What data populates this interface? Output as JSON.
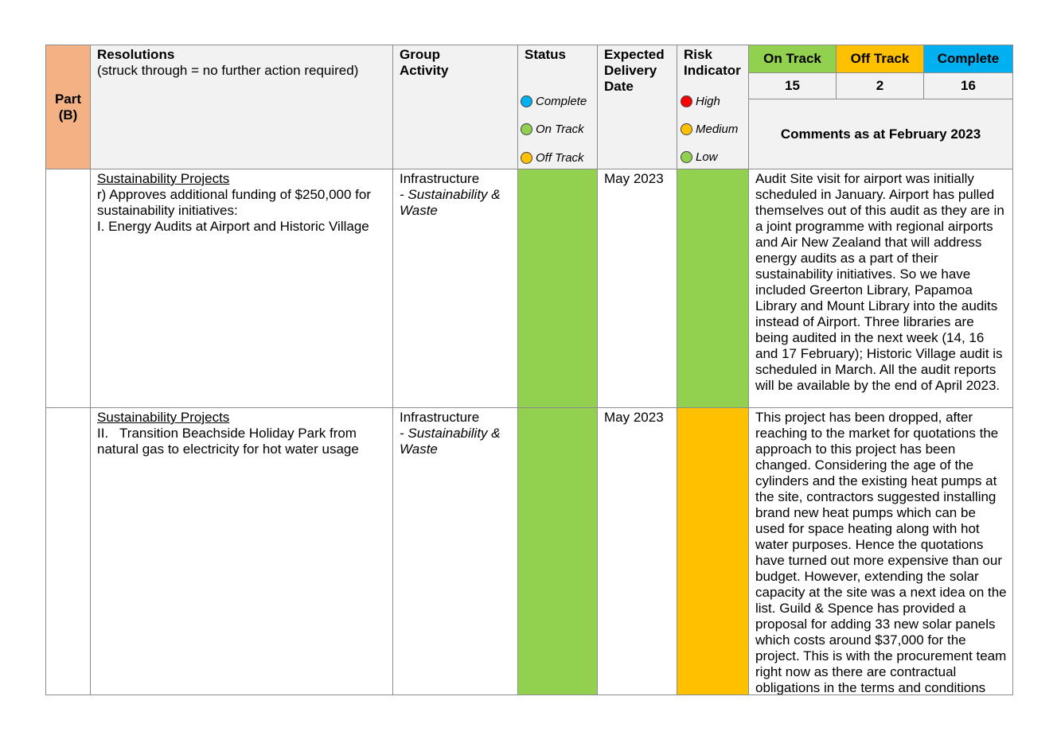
{
  "header": {
    "part": "Part\n(B)",
    "resolutions_title": "Resolutions",
    "resolutions_sub": "(struck through = no further action required)",
    "group_activity": "Group\nActivity",
    "status": "Status",
    "expected_delivery": "Expected\nDelivery\nDate",
    "risk_indicator": "Risk\nIndicator",
    "status_legend": [
      "Complete",
      "On Track",
      "Off Track"
    ],
    "risk_legend": [
      "High",
      "Medium",
      "Low"
    ],
    "summary": [
      {
        "label": "On Track",
        "count": "15",
        "color": "#92d050"
      },
      {
        "label": "Off Track",
        "count": "2",
        "color": "#ffc000"
      },
      {
        "label": "Complete",
        "count": "16",
        "color": "#00b0f0"
      }
    ],
    "comments_title": "Comments as at February 2023"
  },
  "colors": {
    "part_bg": "#f4b183",
    "header_bg": "#f2f2f2",
    "green": "#92d050",
    "amber": "#ffc000",
    "blue": "#00b0f0",
    "red": "#ff0000"
  },
  "rows": [
    {
      "project": "Sustainability Projects",
      "resolution": "r) Approves additional funding of $250,000 for sustainability initiatives:\nI. Energy Audits at Airport and Historic Village",
      "group": "Infrastructure",
      "activity": "- Sustainability & Waste",
      "status": "On Track",
      "delivery": "May 2023",
      "risk": "Low",
      "comment": "Audit Site visit for airport was initially scheduled in January. Airport has pulled themselves out of this audit as they are in a joint programme with regional airports and Air New Zealand that will address energy audits as a part of their sustainability initiatives. So we have included Greerton Library, Papamoa Library and Mount Library into the audits instead of Airport. Three libraries are being audited in the next week (14, 16 and 17 February); Historic Village audit is scheduled in March. All the audit reports will be available by the end of April 2023."
    },
    {
      "project": "Sustainability Projects",
      "resolution": "II.   Transition Beachside Holiday Park from natural gas to electricity for hot water usage",
      "group": "Infrastructure",
      "activity": "- Sustainability & Waste",
      "status": "On Track",
      "delivery": "May 2023",
      "risk": "Medium",
      "comment": "This project has been dropped, after reaching to the market for quotations the approach to this project has been changed. Considering the age of the cylinders and the existing heat pumps at the site, contractors suggested installing brand new heat pumps which can be used for space heating along with hot water purposes. Hence the quotations have turned out more expensive than our budget. However, extending the solar capacity at the site was a next idea on the list. Guild & Spence has provided a proposal for adding 33 new solar panels which costs around $37,000 for the project. This is with the procurement team right now as there are contractual obligations in the terms and conditions"
    }
  ]
}
